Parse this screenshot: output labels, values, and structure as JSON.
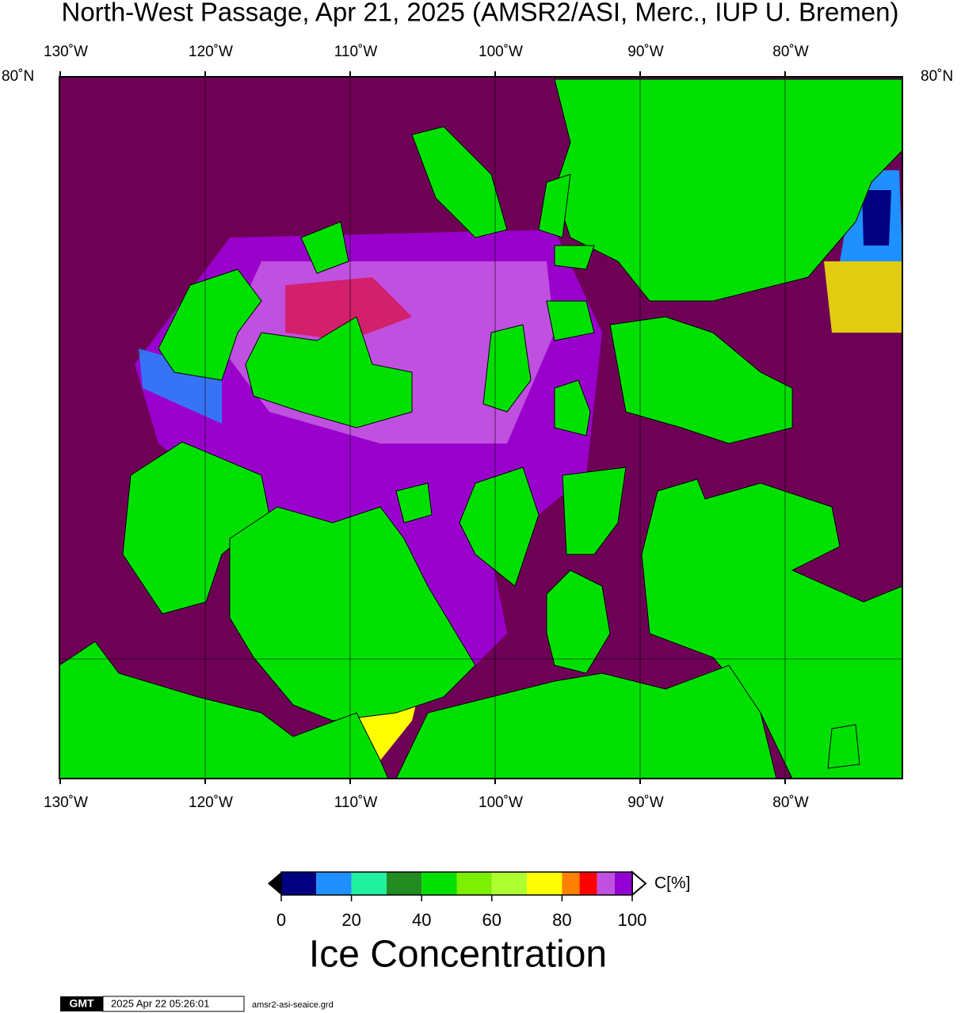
{
  "header": {
    "title": "North-West Passage, Apr 21, 2025 (AMSR2/ASI, Merc., IUP U. Bremen)"
  },
  "map": {
    "lon_labels": [
      "130˚W",
      "120˚W",
      "110˚W",
      "100˚W",
      "90˚W",
      "80˚W"
    ],
    "lat_label": "80˚N"
  },
  "colorbar": {
    "unit": "C[%]",
    "label": "Ice Concentration",
    "range": [
      0,
      100
    ],
    "ticks": [
      0,
      20,
      40,
      60,
      80,
      100
    ],
    "segments": [
      {
        "from": 0,
        "to": 10,
        "color": "#000080"
      },
      {
        "from": 10,
        "to": 20,
        "color": "#1e90ff"
      },
      {
        "from": 20,
        "to": 30,
        "color": "#20f0a0"
      },
      {
        "from": 30,
        "to": 40,
        "color": "#228b22"
      },
      {
        "from": 40,
        "to": 50,
        "color": "#00e000"
      },
      {
        "from": 50,
        "to": 60,
        "color": "#7cf000"
      },
      {
        "from": 60,
        "to": 70,
        "color": "#adff2f"
      },
      {
        "from": 70,
        "to": 80,
        "color": "#ffff00"
      },
      {
        "from": 80,
        "to": 85,
        "color": "#ff7f00"
      },
      {
        "from": 85,
        "to": 90,
        "color": "#ff0000"
      },
      {
        "from": 90,
        "to": 95,
        "color": "#c050e0"
      },
      {
        "from": 95,
        "to": 100,
        "color": "#9400d3"
      }
    ]
  },
  "footer": {
    "logo": "GMT",
    "timestamp": "2025 Apr 22 05:26:01",
    "file": "amsr2-asi-seaice.grd"
  }
}
